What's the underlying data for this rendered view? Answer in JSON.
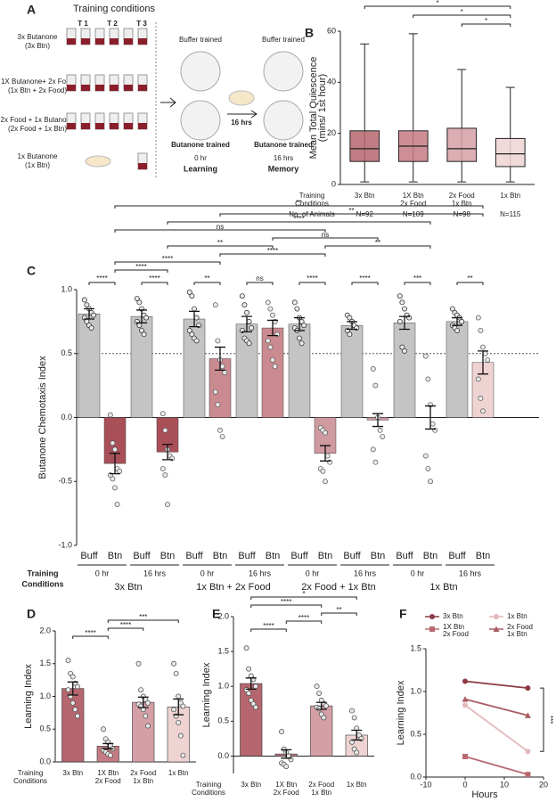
{
  "panel_labels": [
    "A",
    "B",
    "C",
    "D",
    "E",
    "F"
  ],
  "panel_a": {
    "title": "Training conditions",
    "time_points": [
      "T 1",
      "T 2",
      "T 3"
    ],
    "rows": [
      [
        "3x Butanone",
        "(3x Btn)"
      ],
      [
        "1X Butanone+ 2x Food",
        "(1x Btn + 2x Food)"
      ],
      [
        "2x Food + 1x Butanone",
        "(2x Food + 1x Btn)"
      ],
      [
        "1x Butanone",
        "(1x Btn)"
      ]
    ],
    "buffer_trained": "Buffer trained",
    "butanone_trained": "Butanone trained",
    "learning_time": "0 hr",
    "learning": "Learning",
    "delay": "16 hrs",
    "memory_time": "16 hrs",
    "memory": "Memory"
  },
  "chart_data": [
    {
      "type": "box",
      "ylabel": [
        "Mean Total Quiescence",
        "(mins/ 1st hour)"
      ],
      "categories": [
        [
          "3x Btn"
        ],
        [
          "1X Btn",
          "2x Food"
        ],
        [
          "2x Food",
          "1x Btn"
        ],
        [
          "1x Btn"
        ]
      ],
      "row_labels": [
        [
          "Training",
          "Conditions"
        ],
        [
          "No. of Animals"
        ]
      ],
      "n_labels": [
        "N=92",
        "N=109",
        "N=98",
        "N=115"
      ],
      "min": [
        1,
        1,
        1,
        1
      ],
      "q1": [
        9,
        9,
        9,
        7
      ],
      "median": [
        14,
        15,
        14,
        12
      ],
      "q3": [
        21,
        21,
        22,
        18
      ],
      "max": [
        55,
        59,
        45,
        38
      ],
      "colors": [
        "#b5666e",
        "#c47b83",
        "#d4a0a5",
        "#efd3d3"
      ],
      "ylim": [
        0,
        60
      ],
      "yticks": [
        0,
        20,
        40,
        60
      ],
      "significance": [
        {
          "from": 2,
          "to": 3,
          "label": "*"
        },
        {
          "from": 1,
          "to": 3,
          "label": "*"
        },
        {
          "from": 0,
          "to": 3,
          "label": "*"
        }
      ]
    },
    {
      "type": "bar",
      "ylabel": "Butanone Chemotaxis Index",
      "groups": [
        "3x Btn",
        "1x Btn + 2x Food",
        "2x Food + 1x Btn",
        "1x Btn"
      ],
      "time_labels": [
        "0 hr",
        "16 hrs"
      ],
      "row_label": [
        "Training",
        "Conditions"
      ],
      "series": [
        {
          "name": "Buff",
          "color": "#c4c4c4",
          "values": [
            0.81,
            0.79,
            0.77,
            0.73,
            0.73,
            0.72,
            0.74,
            0.75
          ],
          "errors": [
            0.04,
            0.05,
            0.06,
            0.06,
            0.05,
            0.03,
            0.05,
            0.03
          ],
          "points": [
            [
              0.92,
              0.88,
              0.85,
              0.82,
              0.8,
              0.78,
              0.75,
              0.72,
              0.7
            ],
            [
              0.93,
              0.9,
              0.85,
              0.8,
              0.78,
              0.75,
              0.72,
              0.68,
              0.65
            ],
            [
              0.98,
              0.95,
              0.85,
              0.78,
              0.72,
              0.68,
              0.65,
              0.62,
              0.6
            ],
            [
              0.95,
              0.88,
              0.82,
              0.75,
              0.7,
              0.68,
              0.62,
              0.6,
              0.58
            ],
            [
              0.9,
              0.85,
              0.78,
              0.75,
              0.72,
              0.7,
              0.68,
              0.62,
              0.58
            ],
            [
              0.8,
              0.78,
              0.75,
              0.72,
              0.7,
              0.68,
              0.65
            ],
            [
              0.95,
              0.9,
              0.85,
              0.8,
              0.78,
              0.75,
              0.55,
              0.52
            ],
            [
              0.85,
              0.82,
              0.8,
              0.78,
              0.75,
              0.72,
              0.7,
              0.68
            ]
          ]
        },
        {
          "name": "Btn",
          "colors": [
            "#a94f58",
            "#c98a90",
            "#cf9aa0",
            "#efd2d2"
          ],
          "values": [
            -0.36,
            -0.27,
            0.46,
            0.7,
            -0.28,
            -0.02,
            0.0,
            0.43
          ],
          "errors": [
            0.08,
            0.06,
            0.09,
            0.06,
            0.06,
            0.05,
            0.09,
            0.09
          ],
          "points": [
            [
              0.02,
              -0.2,
              -0.25,
              -0.4,
              -0.42,
              -0.45,
              -0.48,
              -0.55,
              -0.68
            ],
            [
              0.03,
              -0.1,
              -0.25,
              -0.3,
              -0.32,
              -0.4,
              -0.45,
              -0.68
            ],
            [
              0.88,
              0.6,
              0.45,
              0.4,
              0.35,
              0.2,
              0.1,
              -0.1,
              -0.15
            ],
            [
              0.9,
              0.85,
              0.8,
              0.75,
              0.65,
              0.6,
              0.55,
              0.45,
              0.4
            ],
            [
              -0.08,
              -0.1,
              -0.12,
              -0.3,
              -0.35,
              -0.4,
              -0.42,
              -0.5
            ],
            [
              0.38,
              0.25,
              0.0,
              -0.1,
              -0.15,
              -0.25,
              -0.35
            ],
            [
              0.48,
              0.3,
              0.1,
              -0.05,
              -0.1,
              -0.3,
              -0.4,
              -0.5
            ],
            [
              0.78,
              0.68,
              0.55,
              0.5,
              0.45,
              0.3,
              0.15,
              0.05
            ]
          ]
        }
      ],
      "refline": 0.5,
      "ylim": [
        -1,
        1
      ],
      "yticks": [
        {
          "value": -1,
          "label": "-1.0"
        },
        -0.5,
        {
          "value": 0,
          "label": "0.0"
        },
        0.5,
        {
          "value": 1,
          "label": "1.0"
        }
      ],
      "pair_significance": [
        "****",
        "****",
        "**",
        "ns",
        "****",
        "****",
        "***",
        "**"
      ],
      "significance": [
        {
          "from": 1,
          "to": 3,
          "label": "****"
        },
        {
          "from": 1,
          "to": 5,
          "label": "****"
        },
        {
          "from": 5,
          "to": 9,
          "label": "****"
        },
        {
          "from": 9,
          "to": 13,
          "label": "**"
        },
        {
          "from": 3,
          "to": 7,
          "label": "**"
        },
        {
          "from": 1,
          "to": 9,
          "label": "ns"
        },
        {
          "from": 7,
          "to": 11,
          "label": "ns"
        },
        {
          "from": 3,
          "to": 13,
          "label": "****"
        },
        {
          "from": 5,
          "to": 15,
          "label": "**"
        },
        {
          "from": 1,
          "to": 15,
          "label": "**"
        }
      ]
    },
    {
      "type": "bar",
      "ylabel": "Learning Index",
      "row_label": [
        "Training",
        "Conditions"
      ],
      "categories": [
        [
          "3x Btn"
        ],
        [
          "1X Btn",
          "2x Food"
        ],
        [
          "2x Food",
          "1x Btn"
        ],
        [
          "1x Btn"
        ]
      ],
      "colors": [
        "#b5666e",
        "#c47b83",
        "#d4a0a5",
        "#efd3d3"
      ],
      "values": [
        1.12,
        0.24,
        0.91,
        0.84
      ],
      "errors": [
        0.1,
        0.04,
        0.08,
        0.12
      ],
      "points": [
        [
          1.55,
          1.35,
          1.3,
          1.2,
          1.15,
          1.1,
          1.0,
          0.9,
          0.8,
          0.7
        ],
        [
          0.5,
          0.35,
          0.3,
          0.25,
          0.2,
          0.18,
          0.15,
          0.12,
          0.1
        ],
        [
          1.5,
          1.1,
          1.0,
          0.95,
          0.9,
          0.88,
          0.85,
          0.8,
          0.7,
          0.55
        ],
        [
          1.5,
          1.35,
          1.0,
          0.9,
          0.85,
          0.8,
          0.7,
          0.6,
          0.4,
          0.1
        ]
      ],
      "ylim": [
        0,
        2
      ],
      "yticks": [
        {
          "value": 0,
          "label": "0.0"
        },
        0.5,
        {
          "value": 1,
          "label": "1.0"
        },
        1.5,
        {
          "value": 2,
          "label": "2.0"
        }
      ],
      "significance": [
        {
          "from": 0,
          "to": 1,
          "label": "****"
        },
        {
          "from": 1,
          "to": 2,
          "label": "****"
        },
        {
          "from": 1,
          "to": 3,
          "label": "***"
        }
      ]
    },
    {
      "type": "bar",
      "ylabel": "Learning Index",
      "row_label": [
        "Training",
        "Conditions"
      ],
      "categories": [
        [
          "3x Btn"
        ],
        [
          "1X Btn",
          "2x Food"
        ],
        [
          "2x Food",
          "1x Btn"
        ],
        [
          "1x Btn"
        ]
      ],
      "colors": [
        "#b5666e",
        "#c47b83",
        "#d4a0a5",
        "#efd3d3"
      ],
      "values": [
        1.04,
        0.03,
        0.72,
        0.3
      ],
      "errors": [
        0.08,
        0.06,
        0.05,
        0.07
      ],
      "points": [
        [
          1.55,
          1.25,
          1.15,
          1.1,
          1.0,
          0.95,
          0.9,
          0.8,
          0.75,
          0.7
        ],
        [
          0.35,
          0.1,
          0.05,
          0.0,
          -0.05,
          -0.1,
          -0.12,
          -0.15
        ],
        [
          1.0,
          0.9,
          0.8,
          0.75,
          0.72,
          0.7,
          0.68,
          0.6,
          0.55
        ],
        [
          0.65,
          0.55,
          0.4,
          0.3,
          0.25,
          0.2,
          0.1,
          0.05
        ]
      ],
      "ylim": [
        -0.25,
        2
      ],
      "yticks": [
        {
          "value": 0,
          "label": "0.0"
        },
        0.5,
        {
          "value": 1,
          "label": "1.0"
        },
        1.5,
        {
          "value": 2,
          "label": "2.0"
        }
      ],
      "significance": [
        {
          "from": 0,
          "to": 1,
          "label": "****"
        },
        {
          "from": 1,
          "to": 2,
          "label": "****"
        },
        {
          "from": 2,
          "to": 3,
          "label": "**"
        },
        {
          "from": 0,
          "to": 2,
          "label": "****"
        },
        {
          "from": 0,
          "to": 3,
          "label": "*"
        }
      ]
    },
    {
      "type": "line",
      "ylabel": "Learning Index",
      "xlabel": "Hours",
      "annotation": "***",
      "x": [
        0,
        16
      ],
      "series": [
        {
          "name": [
            "3x Btn"
          ],
          "color": "#8c3a43",
          "marker": "circle",
          "values": [
            1.12,
            1.04
          ]
        },
        {
          "name": [
            "1X Btn",
            "2x Food"
          ],
          "color": "#b86a72",
          "marker": "square",
          "values": [
            0.24,
            0.03
          ]
        },
        {
          "name": [
            "1x Btn"
          ],
          "color": "#e2b8bb",
          "marker": "circle",
          "values": [
            0.84,
            0.3
          ]
        },
        {
          "name": [
            "2x Food",
            "1x Btn"
          ],
          "color": "#a85c64",
          "marker": "triangle",
          "values": [
            0.91,
            0.72
          ]
        }
      ],
      "xlim": [
        -10,
        20
      ],
      "xticks": [
        -10,
        0,
        10,
        20
      ],
      "ylim": [
        0,
        1.5
      ],
      "yticks": [
        {
          "value": 0,
          "label": "0.0"
        },
        0.5,
        {
          "value": 1,
          "label": "1.0"
        },
        1.5
      ]
    }
  ]
}
